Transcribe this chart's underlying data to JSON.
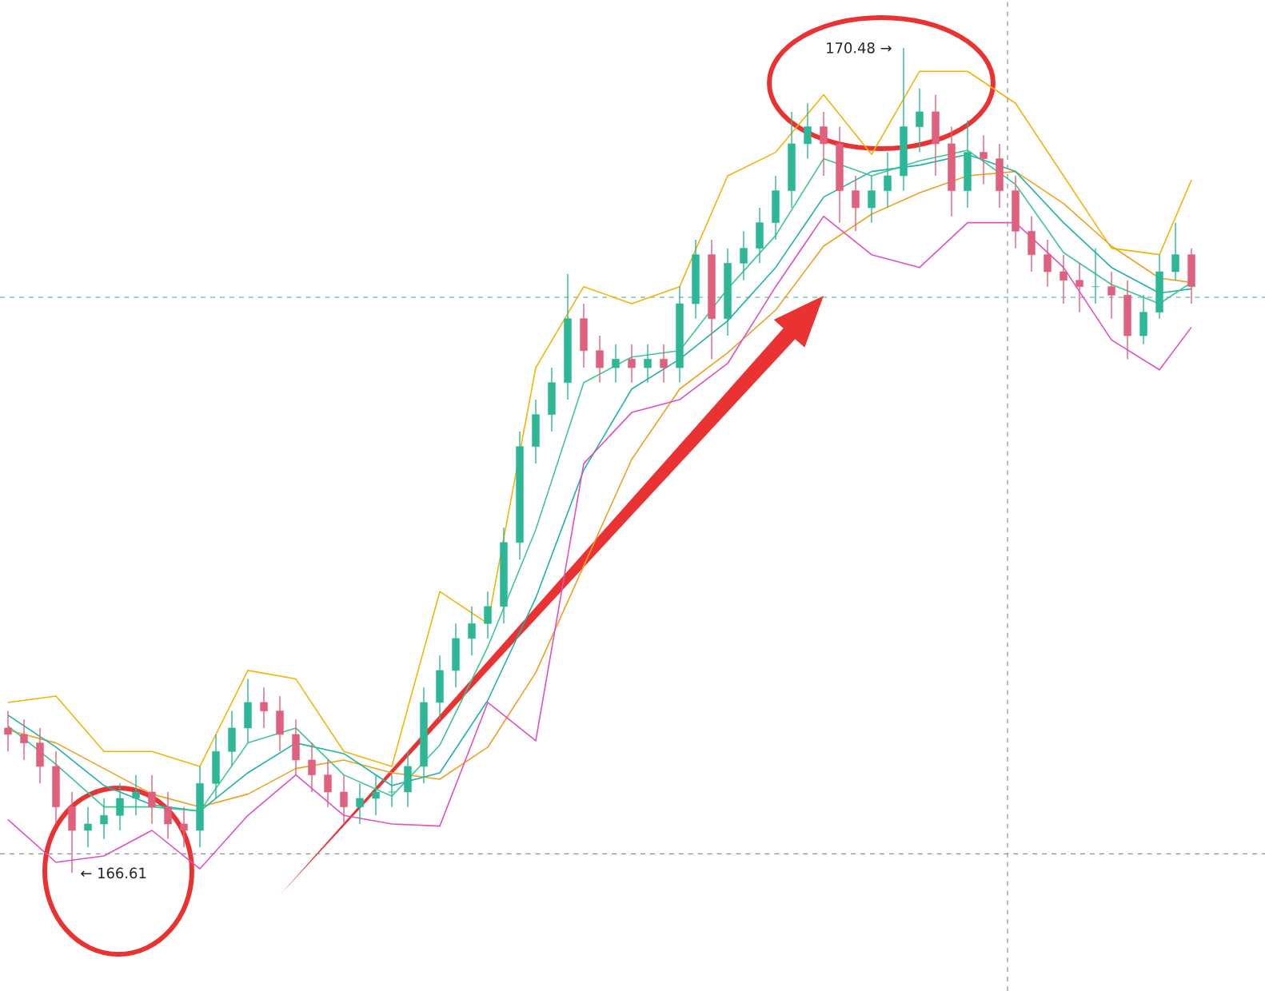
{
  "chart_data": {
    "type": "candlestick",
    "categories": [
      null,
      null,
      null,
      null,
      null,
      null,
      null,
      null,
      null,
      null,
      null,
      null,
      null,
      null,
      null,
      null,
      null,
      null,
      null,
      null,
      null,
      null,
      null,
      null,
      null,
      null,
      null,
      null,
      null,
      null,
      null,
      null,
      null,
      null,
      null,
      null,
      null,
      null,
      null,
      null,
      null,
      null,
      null,
      null,
      null,
      null,
      null,
      null,
      null,
      null,
      null,
      null,
      null,
      null,
      null,
      null,
      null,
      null,
      null,
      null,
      null,
      null,
      null,
      null,
      null,
      null,
      null,
      null,
      null,
      null,
      null,
      null,
      null,
      null,
      null
    ],
    "ohlc": [
      [
        167.29,
        167.37,
        167.18,
        167.26
      ],
      [
        167.26,
        167.33,
        167.14,
        167.22
      ],
      [
        167.22,
        167.29,
        167.03,
        167.11
      ],
      [
        167.11,
        167.18,
        166.84,
        166.92
      ],
      [
        166.92,
        166.99,
        166.61,
        166.81
      ],
      [
        166.81,
        166.92,
        166.73,
        166.84
      ],
      [
        166.84,
        166.96,
        166.77,
        166.88
      ],
      [
        166.88,
        167.03,
        166.81,
        166.96
      ],
      [
        166.96,
        167.07,
        166.88,
        166.99
      ],
      [
        166.99,
        167.07,
        166.84,
        166.92
      ],
      [
        166.92,
        166.99,
        166.77,
        166.84
      ],
      [
        166.84,
        166.92,
        166.73,
        166.81
      ],
      [
        166.81,
        167.11,
        166.73,
        167.03
      ],
      [
        167.03,
        167.26,
        166.96,
        167.18
      ],
      [
        167.18,
        167.37,
        167.11,
        167.29
      ],
      [
        167.29,
        167.52,
        167.22,
        167.41
      ],
      [
        167.41,
        167.48,
        167.29,
        167.37
      ],
      [
        167.37,
        167.44,
        167.18,
        167.26
      ],
      [
        167.26,
        167.33,
        167.07,
        167.14
      ],
      [
        167.14,
        167.22,
        166.99,
        167.07
      ],
      [
        167.07,
        167.14,
        166.92,
        166.99
      ],
      [
        166.99,
        167.07,
        166.84,
        166.92
      ],
      [
        166.92,
        167.03,
        166.84,
        166.96
      ],
      [
        166.96,
        167.07,
        166.88,
        166.99
      ],
      [
        166.99,
        167.07,
        166.92,
        166.99
      ],
      [
        166.99,
        167.18,
        166.92,
        167.11
      ],
      [
        167.11,
        167.48,
        167.03,
        167.41
      ],
      [
        167.41,
        167.63,
        167.33,
        167.56
      ],
      [
        167.56,
        167.78,
        167.48,
        167.71
      ],
      [
        167.71,
        167.86,
        167.63,
        167.78
      ],
      [
        167.78,
        167.93,
        167.71,
        167.86
      ],
      [
        167.86,
        168.23,
        167.78,
        168.16
      ],
      [
        168.16,
        168.68,
        168.08,
        168.61
      ],
      [
        168.61,
        168.83,
        168.53,
        168.76
      ],
      [
        168.76,
        168.98,
        168.68,
        168.91
      ],
      [
        168.91,
        169.42,
        168.83,
        169.21
      ],
      [
        169.21,
        169.28,
        168.98,
        169.06
      ],
      [
        169.06,
        169.13,
        168.91,
        168.98
      ],
      [
        168.98,
        169.09,
        168.91,
        169.02
      ],
      [
        169.02,
        169.09,
        168.91,
        168.98
      ],
      [
        168.98,
        169.09,
        168.91,
        169.02
      ],
      [
        169.02,
        169.09,
        168.91,
        168.98
      ],
      [
        168.98,
        169.36,
        168.91,
        169.28
      ],
      [
        169.28,
        169.58,
        169.21,
        169.51
      ],
      [
        169.51,
        169.58,
        169.02,
        169.21
      ],
      [
        169.21,
        169.54,
        169.13,
        169.47
      ],
      [
        169.47,
        169.62,
        169.39,
        169.54
      ],
      [
        169.54,
        169.73,
        169.47,
        169.66
      ],
      [
        169.66,
        169.88,
        169.58,
        169.81
      ],
      [
        169.81,
        170.18,
        169.73,
        170.03
      ],
      [
        170.03,
        170.22,
        169.96,
        170.11
      ],
      [
        170.11,
        170.18,
        169.88,
        170.03
      ],
      [
        170.03,
        170.11,
        169.66,
        169.81
      ],
      [
        169.81,
        169.88,
        169.62,
        169.73
      ],
      [
        169.73,
        169.88,
        169.66,
        169.81
      ],
      [
        169.81,
        169.99,
        169.73,
        169.88
      ],
      [
        169.88,
        170.48,
        169.81,
        170.11
      ],
      [
        170.11,
        170.29,
        169.99,
        170.18
      ],
      [
        170.18,
        170.26,
        169.88,
        170.03
      ],
      [
        170.03,
        170.11,
        169.69,
        169.81
      ],
      [
        169.81,
        170.14,
        169.73,
        169.99
      ],
      [
        169.99,
        170.07,
        169.84,
        169.96
      ],
      [
        169.96,
        170.03,
        169.73,
        169.81
      ],
      [
        169.81,
        169.88,
        169.54,
        169.62
      ],
      [
        169.62,
        169.69,
        169.43,
        169.51
      ],
      [
        169.51,
        169.58,
        169.36,
        169.43
      ],
      [
        169.43,
        169.51,
        169.28,
        169.39
      ],
      [
        169.39,
        169.47,
        169.24,
        169.36
      ],
      [
        169.36,
        169.54,
        169.28,
        169.36
      ],
      [
        169.36,
        169.43,
        169.21,
        169.32
      ],
      [
        169.32,
        169.39,
        169.02,
        169.13
      ],
      [
        169.13,
        169.32,
        169.09,
        169.24
      ],
      [
        169.24,
        169.51,
        169.21,
        169.43
      ],
      [
        169.43,
        169.66,
        169.39,
        169.51
      ],
      [
        169.51,
        169.54,
        169.28,
        169.36
      ]
    ],
    "colors": [
      "#e0607e",
      "#e0607e",
      "#e0607e",
      "#e0607e",
      "#e0607e",
      "#2cb896",
      "#2cb896",
      "#2cb896",
      "#2cb896",
      "#e0607e",
      "#e0607e",
      "#e0607e",
      "#2cb896",
      "#2cb896",
      "#2cb896",
      "#2cb896",
      "#e0607e",
      "#e0607e",
      "#e0607e",
      "#e0607e",
      "#e0607e",
      "#e0607e",
      "#2cb896",
      "#2cb896",
      "#2cb896",
      "#2cb896",
      "#2cb896",
      "#2cb896",
      "#2cb896",
      "#2cb896",
      "#2cb896",
      "#2cb896",
      "#2cb896",
      "#2cb896",
      "#2cb896",
      "#2cb896",
      "#e0607e",
      "#e0607e",
      "#2cb896",
      "#e0607e",
      "#2cb896",
      "#e0607e",
      "#2cb896",
      "#2cb896",
      "#e0607e",
      "#2cb896",
      "#2cb896",
      "#2cb896",
      "#2cb896",
      "#2cb896",
      "#2cb896",
      "#e0607e",
      "#e0607e",
      "#e0607e",
      "#2cb896",
      "#2cb896",
      "#2cb896",
      "#2cb896",
      "#e0607e",
      "#e0607e",
      "#2cb896",
      "#e0607e",
      "#e0607e",
      "#e0607e",
      "#e0607e",
      "#e0607e",
      "#e0607e",
      "#e0607e",
      "#2cb896",
      "#e0607e",
      "#e0607e",
      "#2cb896",
      "#2cb896",
      "#2cb896",
      "#e0607e"
    ],
    "series": [
      {
        "type": "line",
        "color": "#f5b30a",
        "values": [
          167.41,
          null,
          null,
          167.44,
          null,
          null,
          167.18,
          null,
          null,
          167.18,
          null,
          null,
          167.11,
          null,
          null,
          167.56,
          null,
          null,
          167.52,
          null,
          null,
          167.18,
          null,
          null,
          167.11,
          null,
          null,
          167.93,
          null,
          null,
          167.78,
          null,
          null,
          168.98,
          null,
          null,
          169.36,
          null,
          null,
          169.28,
          null,
          null,
          169.36,
          null,
          null,
          169.88,
          null,
          null,
          169.99,
          null,
          null,
          170.26,
          null,
          null,
          169.98,
          null,
          null,
          170.37,
          null,
          null,
          170.37,
          null,
          null,
          170.22,
          null,
          null,
          169.88,
          null,
          null,
          169.54,
          null,
          null,
          169.51,
          null,
          169.86
        ]
      },
      {
        "type": "line",
        "color": "#f0a020",
        "values": [
          167.28,
          null,
          null,
          167.22,
          null,
          null,
          167.1,
          null,
          null,
          166.98,
          null,
          null,
          166.92,
          null,
          null,
          166.98,
          null,
          null,
          167.1,
          null,
          null,
          167.14,
          null,
          null,
          167.08,
          null,
          null,
          167.05,
          null,
          null,
          167.2,
          null,
          null,
          167.55,
          null,
          null,
          168.05,
          null,
          null,
          168.55,
          null,
          null,
          168.88,
          null,
          null,
          169.05,
          null,
          null,
          169.25,
          null,
          null,
          169.55,
          null,
          null,
          169.7,
          null,
          null,
          169.8,
          null,
          null,
          169.88,
          null,
          null,
          169.9,
          null,
          null,
          169.75,
          null,
          null,
          169.55,
          null,
          null,
          169.4,
          null,
          169.38
        ]
      },
      {
        "type": "line",
        "color": "#20b2aa",
        "values": [
          167.35,
          null,
          null,
          167.2,
          null,
          null,
          167.02,
          null,
          null,
          166.93,
          null,
          null,
          166.9,
          null,
          null,
          167.08,
          null,
          null,
          167.22,
          null,
          null,
          167.17,
          null,
          null,
          167.02,
          null,
          null,
          167.08,
          null,
          null,
          167.42,
          null,
          null,
          167.9,
          null,
          null,
          168.5,
          null,
          null,
          168.88,
          null,
          null,
          169.02,
          null,
          null,
          169.2,
          null,
          null,
          169.45,
          null,
          null,
          169.78,
          null,
          null,
          169.9,
          null,
          null,
          169.93,
          null,
          null,
          169.98,
          null,
          null,
          169.9,
          null,
          null,
          169.66,
          null,
          null,
          169.45,
          null,
          null,
          169.33,
          null,
          169.35
        ]
      },
      {
        "type": "line",
        "color": "#3cc88c",
        "values": [
          167.3,
          null,
          null,
          167.12,
          null,
          null,
          166.92,
          null,
          null,
          166.92,
          null,
          null,
          166.9,
          null,
          null,
          167.22,
          null,
          null,
          167.29,
          null,
          null,
          167.07,
          null,
          null,
          166.97,
          null,
          null,
          167.21,
          null,
          null,
          167.67,
          null,
          null,
          168.22,
          null,
          null,
          168.91,
          null,
          null,
          169.03,
          null,
          null,
          169.06,
          null,
          null,
          169.35,
          null,
          null,
          169.6,
          null,
          null,
          169.96,
          null,
          null,
          169.88,
          null,
          null,
          169.95,
          null,
          null,
          170.0,
          null,
          null,
          169.84,
          null,
          null,
          169.52,
          null,
          null,
          169.37,
          null,
          null,
          169.28,
          null,
          169.38
        ]
      },
      {
        "type": "line",
        "color": "#e050c0",
        "values": [
          166.86,
          null,
          null,
          166.66,
          null,
          null,
          166.69,
          null,
          null,
          166.81,
          null,
          null,
          166.63,
          null,
          null,
          166.88,
          null,
          null,
          167.07,
          null,
          null,
          166.88,
          null,
          null,
          166.84,
          null,
          null,
          166.83,
          null,
          null,
          167.41,
          null,
          null,
          167.23,
          null,
          null,
          168.53,
          null,
          null,
          168.77,
          null,
          null,
          168.83,
          null,
          null,
          169.0,
          null,
          null,
          169.36,
          null,
          null,
          169.69,
          null,
          null,
          169.51,
          null,
          null,
          169.45,
          null,
          null,
          169.66,
          null,
          null,
          169.66,
          null,
          null,
          169.45,
          null,
          null,
          169.11,
          null,
          null,
          168.97,
          null,
          169.17
        ]
      }
    ],
    "ref_lines": [
      {
        "axis": "y",
        "value": 169.31,
        "color": "#3aa890",
        "line_style": "dashed"
      },
      {
        "axis": "y",
        "value": 166.7,
        "color": "#909090",
        "line_style": "dashed"
      }
    ],
    "annotations": [
      "170.48 →",
      "← 166.61"
    ]
  }
}
